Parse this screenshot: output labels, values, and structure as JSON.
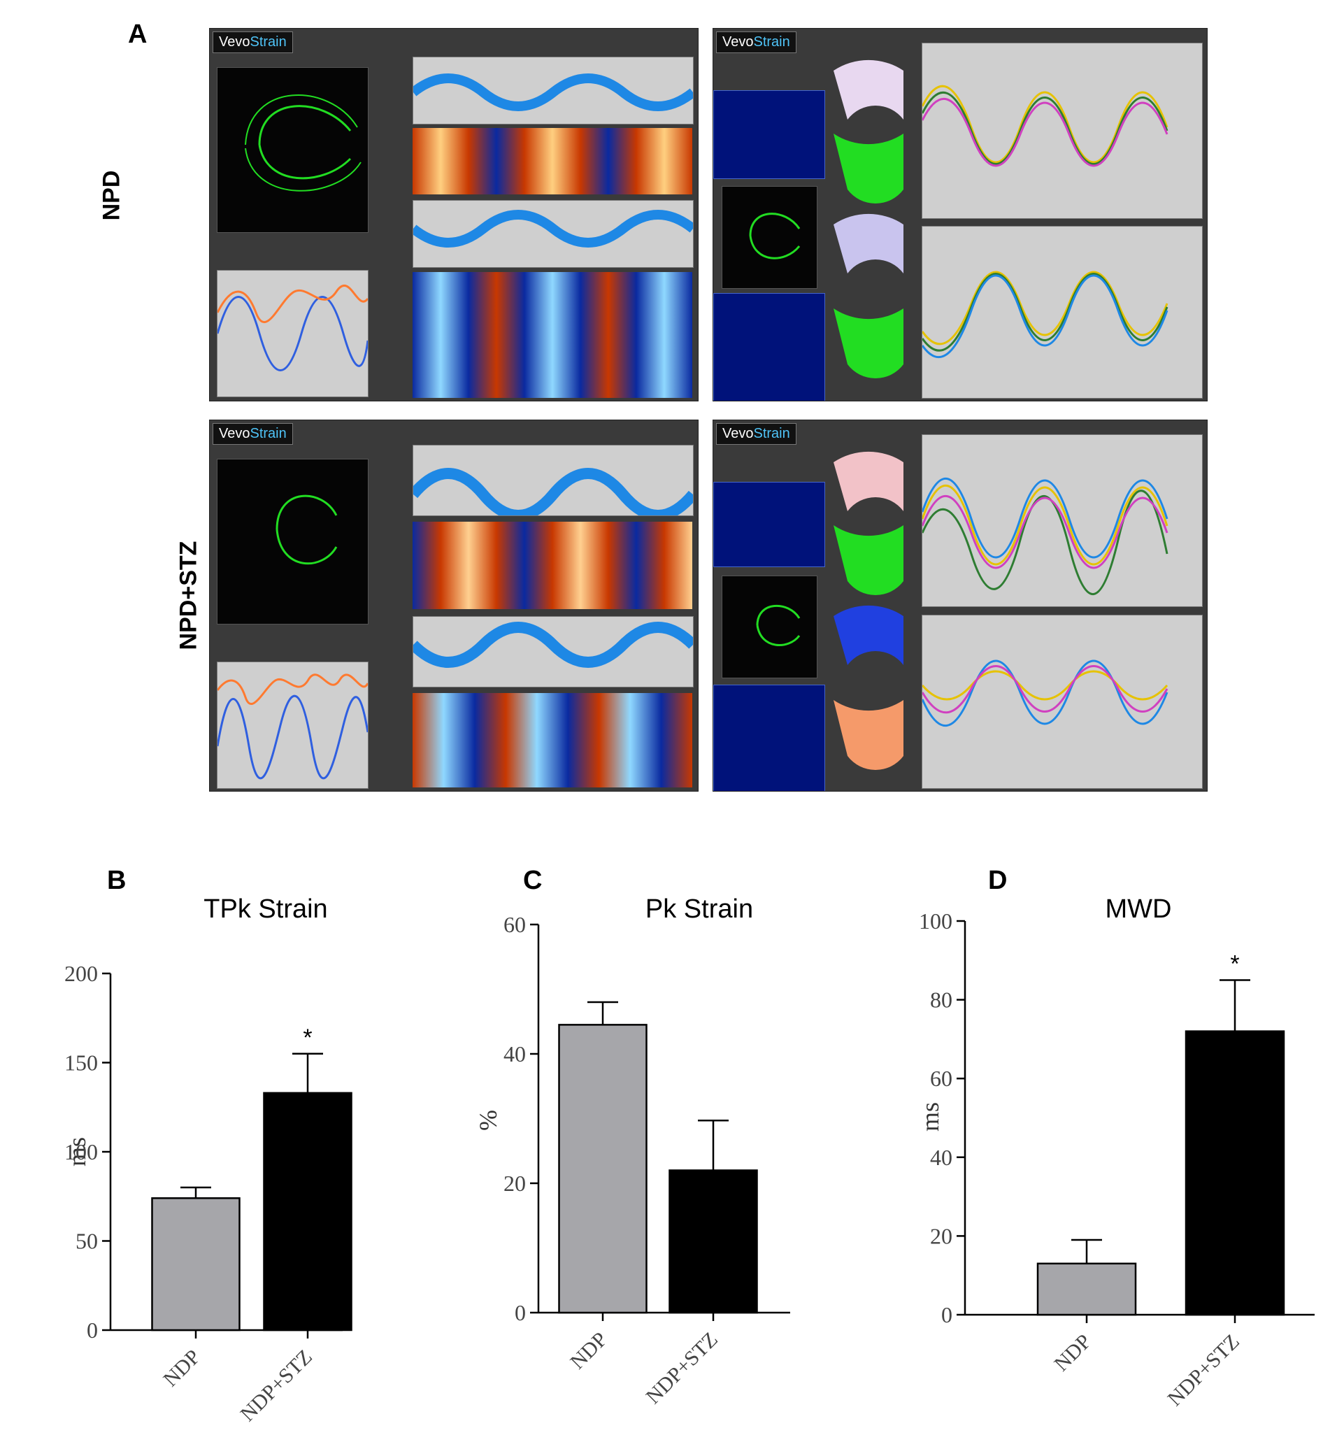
{
  "panel_labels": {
    "a": "A",
    "b": "B",
    "c": "C",
    "d": "D"
  },
  "panel_a": {
    "rows": [
      {
        "label": "NPD",
        "logo_main": "Vevo",
        "logo_sub": "Strain"
      },
      {
        "label": "NPD+STZ",
        "logo_main": "Vevo",
        "logo_sub": "Strain"
      }
    ]
  },
  "colors": {
    "bar_control": "#a6a6aa",
    "bar_stz": "#000000",
    "ultrasound_bg": "#3a3a3a",
    "speckle_green": "#22dd22",
    "trace_orange": "#ff7a30",
    "trace_blue": "#2f5fe0"
  },
  "chart_data": [
    {
      "type": "bar",
      "title": "TPk Strain",
      "ylabel": "ms",
      "categories": [
        "NDP",
        "NDP+STZ"
      ],
      "values": [
        74,
        133
      ],
      "errors": [
        6,
        22
      ],
      "significance": [
        "",
        "*"
      ],
      "ylim": [
        0,
        200
      ],
      "yticks": [
        0,
        50,
        100,
        150,
        200
      ],
      "ytick_labels": [
        "0",
        "50",
        "100",
        "150",
        "200"
      ]
    },
    {
      "type": "bar",
      "title": "Pk Strain",
      "ylabel": "%",
      "categories": [
        "NDP",
        "NDP+STZ"
      ],
      "values": [
        44.5,
        22
      ],
      "errors": [
        3.5,
        7.7
      ],
      "significance": [
        "",
        ""
      ],
      "ylim": [
        0,
        60
      ],
      "yticks": [
        0,
        20,
        40,
        60
      ],
      "ytick_labels": [
        "0",
        "20",
        "40",
        "60"
      ]
    },
    {
      "type": "bar",
      "title": "MWD",
      "ylabel": "ms",
      "categories": [
        "NDP",
        "NDP+STZ"
      ],
      "values": [
        13,
        72
      ],
      "errors": [
        6,
        13
      ],
      "significance": [
        "",
        "*"
      ],
      "ylim": [
        0,
        100
      ],
      "yticks": [
        0,
        20,
        40,
        60,
        80,
        100
      ],
      "ytick_labels": [
        "0",
        "20",
        "40",
        "60",
        "80",
        "100"
      ]
    }
  ]
}
